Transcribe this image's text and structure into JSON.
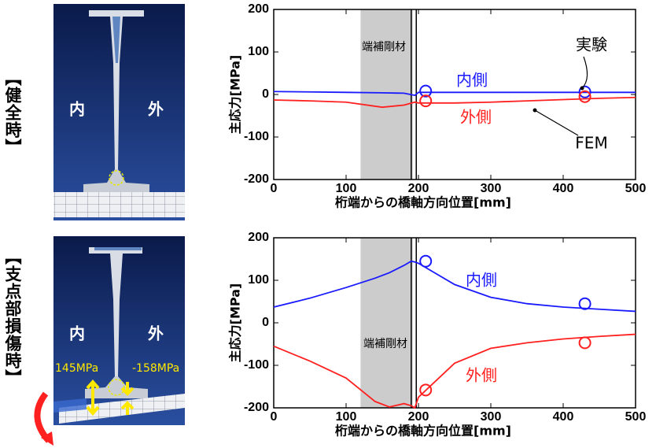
{
  "side_labels": [
    "【健全時】",
    "【支点部損傷時】"
  ],
  "models": [
    {
      "inner": "内",
      "outer": "外"
    },
    {
      "inner": "内",
      "outer": "外",
      "inner_stress": "145MPa",
      "outer_stress": "-158MPa"
    }
  ],
  "chart_data": [
    {
      "type": "line",
      "xlabel": "桁端からの橋軸方向位置[mm]",
      "ylabel": "主応力[MPa]",
      "xlim": [
        0,
        500
      ],
      "xticks": [
        0,
        100,
        200,
        300,
        400,
        500
      ],
      "ylim": [
        -200,
        200
      ],
      "yticks": [
        -200,
        -100,
        0,
        100,
        200
      ],
      "band": [
        120,
        192
      ],
      "band_color": "#cccccc",
      "stiffener_x": [
        190,
        197
      ],
      "x": [
        0,
        50,
        100,
        150,
        180,
        195,
        200,
        250,
        300,
        350,
        400,
        450,
        500
      ],
      "series": [
        {
          "name": "内側",
          "color": "#1a1aff",
          "values": [
            7,
            6,
            5,
            4,
            3,
            -2,
            5,
            5,
            5,
            5,
            5,
            5,
            5
          ]
        },
        {
          "name": "外側",
          "color": "#ff2020",
          "values": [
            -13,
            -15,
            -18,
            -30,
            -25,
            -18,
            -20,
            -20,
            -18,
            -15,
            -12,
            -9,
            -7
          ]
        }
      ],
      "experiment": {
        "x": [
          210,
          430
        ],
        "values": [
          [
            8,
            6
          ],
          [
            -15,
            -5
          ]
        ]
      },
      "annotations": [
        "実験",
        "FEM",
        "端補剛材"
      ]
    },
    {
      "type": "line",
      "xlabel": "桁端からの橋軸方向位置[mm]",
      "ylabel": "主応力[MPa]",
      "xlim": [
        0,
        500
      ],
      "xticks": [
        0,
        100,
        200,
        300,
        400,
        500
      ],
      "ylim": [
        -200,
        200
      ],
      "yticks": [
        -200,
        -100,
        0,
        100,
        200
      ],
      "band": [
        120,
        192
      ],
      "band_color": "#cccccc",
      "stiffener_x": [
        190,
        197
      ],
      "x": [
        0,
        50,
        100,
        140,
        160,
        180,
        190,
        195,
        200,
        250,
        300,
        350,
        400,
        450,
        500
      ],
      "series": [
        {
          "name": "内側",
          "color": "#1a1aff",
          "values": [
            37,
            58,
            83,
            105,
            118,
            135,
            145,
            143,
            140,
            90,
            60,
            45,
            37,
            32,
            27
          ]
        },
        {
          "name": "外側",
          "color": "#ff2020",
          "values": [
            -55,
            -90,
            -130,
            -185,
            -198,
            -190,
            -195,
            -200,
            -175,
            -95,
            -60,
            -47,
            -38,
            -32,
            -27
          ]
        }
      ],
      "experiment": {
        "x": [
          210,
          430
        ],
        "values": [
          [
            145,
            45
          ],
          [
            -158,
            -47
          ]
        ]
      },
      "annotations": [
        "端補剛材"
      ]
    }
  ]
}
